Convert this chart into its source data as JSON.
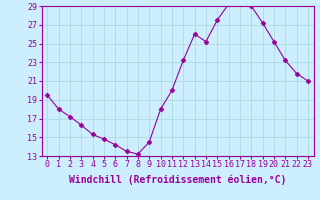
{
  "x": [
    0,
    1,
    2,
    3,
    4,
    5,
    6,
    7,
    8,
    9,
    10,
    11,
    12,
    13,
    14,
    15,
    16,
    17,
    18,
    19,
    20,
    21,
    22,
    23
  ],
  "y": [
    19.5,
    18.0,
    17.2,
    16.3,
    15.3,
    14.8,
    14.2,
    13.5,
    13.2,
    14.5,
    18.0,
    20.0,
    23.2,
    26.0,
    25.2,
    27.5,
    29.2,
    29.2,
    29.0,
    27.2,
    25.2,
    23.2,
    21.8,
    21.0
  ],
  "line_color": "#990099",
  "marker": "D",
  "marker_size": 2.5,
  "bg_color": "#cceeff",
  "grid_color": "#aadddd",
  "xlabel": "Windchill (Refroidissement éolien,°C)",
  "xlabel_fontsize": 7,
  "tick_fontsize": 6,
  "ylim": [
    13,
    29
  ],
  "xlim": [
    -0.5,
    23.5
  ],
  "yticks": [
    13,
    15,
    17,
    19,
    21,
    23,
    25,
    27,
    29
  ],
  "xticks": [
    0,
    1,
    2,
    3,
    4,
    5,
    6,
    7,
    8,
    9,
    10,
    11,
    12,
    13,
    14,
    15,
    16,
    17,
    18,
    19,
    20,
    21,
    22,
    23
  ]
}
